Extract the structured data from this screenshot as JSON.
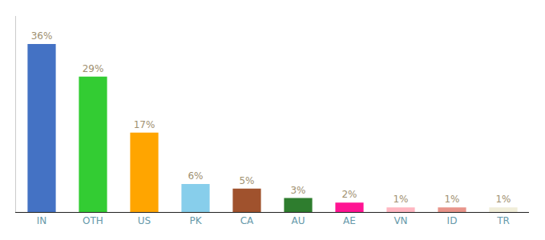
{
  "chart_data": {
    "type": "bar",
    "categories": [
      "IN",
      "OTH",
      "US",
      "PK",
      "CA",
      "AU",
      "AE",
      "VN",
      "ID",
      "TR"
    ],
    "values": [
      36,
      29,
      17,
      6,
      5,
      3,
      2,
      1,
      1,
      1
    ],
    "value_labels": [
      "36%",
      "29%",
      "17%",
      "6%",
      "5%",
      "3%",
      "2%",
      "1%",
      "1%",
      "1%"
    ],
    "colors": [
      "#4472C4",
      "#33CC33",
      "#FFA500",
      "#87CEEB",
      "#A0522D",
      "#2E7D2E",
      "#FF1493",
      "#FFB6C1",
      "#E8948A",
      "#F0EDD8"
    ],
    "ylim": [
      0,
      42
    ],
    "data_labels": true,
    "tick_labels": "x",
    "grid": false
  }
}
